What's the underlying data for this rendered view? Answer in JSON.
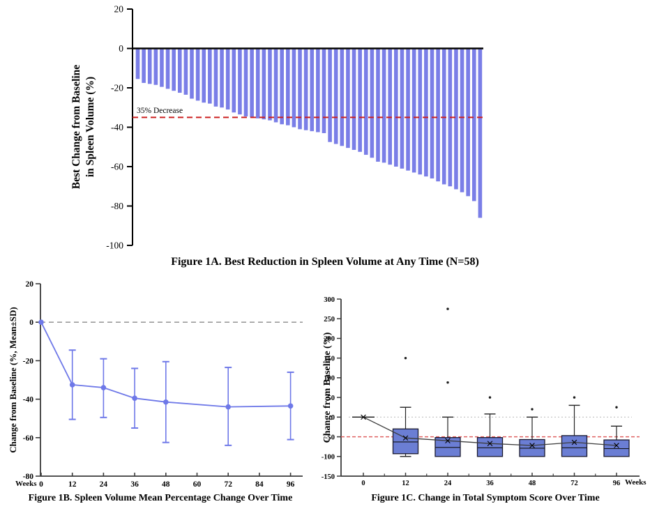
{
  "page": {
    "background": "#ffffff"
  },
  "chart_data": [
    {
      "id": "fig1a",
      "type": "bar",
      "title": "Figure 1A. Best Reduction in Spleen Volume at Any Time (N=58)",
      "ylabel_lines": [
        "Best Change from Baseline",
        "in Spleen Volume (%)"
      ],
      "ylim": [
        20,
        -100
      ],
      "yticks": [
        20,
        0,
        -20,
        -40,
        -60,
        -80,
        -100
      ],
      "n_patients": 58,
      "values": [
        -15.5,
        -17.5,
        -18,
        -18.5,
        -19.5,
        -20.5,
        -21.5,
        -22.5,
        -23.5,
        -25.5,
        -26.5,
        -27.5,
        -28,
        -29.5,
        -30,
        -31,
        -32.5,
        -33.5,
        -34.5,
        -35,
        -35.5,
        -36,
        -36.5,
        -37.5,
        -38.5,
        -39,
        -40,
        -41,
        -41.5,
        -42,
        -42.5,
        -43,
        -47.5,
        -48.5,
        -49.5,
        -50.5,
        -51.5,
        -52.5,
        -54,
        -55.5,
        -57.5,
        -58,
        -59,
        -60,
        -61,
        -62,
        -63,
        -64,
        -65,
        -66,
        -67.5,
        -69,
        -70,
        -71.5,
        -73,
        -75,
        -77.5,
        -86
      ],
      "reference_line": {
        "value": -35,
        "label": "35% Decrease",
        "color": "#cc1f1f"
      },
      "bar_color": "#7a7ee7",
      "grid": false
    },
    {
      "id": "fig1b",
      "type": "line",
      "title": "Figure 1B. Spleen Volume Mean Percentage Change Over Time",
      "ylabel": "Change from Baseline (%, Mean±SD)",
      "xlabel": "Weeks",
      "ylim": [
        20,
        -80
      ],
      "yticks": [
        20,
        0,
        -20,
        -40,
        -60,
        -80
      ],
      "xticks": [
        0,
        12,
        24,
        36,
        48,
        60,
        72,
        84,
        96
      ],
      "x": [
        0,
        12,
        24,
        36,
        48,
        72,
        96
      ],
      "mean": [
        0,
        -32.5,
        -34,
        -39.5,
        -41.5,
        -44,
        -43.5
      ],
      "upper": [
        null,
        -14.5,
        -19,
        -24,
        -20.5,
        -23.5,
        -26
      ],
      "lower": [
        null,
        -50.5,
        -49.5,
        -55,
        -62.5,
        -64,
        -61
      ],
      "line_color": "#6e78e8",
      "zero_line_color": "#8a8a8a",
      "grid": false,
      "legend": "none"
    },
    {
      "id": "fig1c",
      "type": "box",
      "title": "Figure 1C. Change in Total Symptom Score Over Time",
      "ylabel": "Change from Baseline (%)",
      "xlabel": "Weeks",
      "ylim": [
        300,
        -150
      ],
      "yticks": [
        300,
        250,
        200,
        150,
        100,
        50,
        0,
        -50,
        -100,
        -150
      ],
      "categories": [
        0,
        12,
        24,
        36,
        48,
        72,
        96
      ],
      "boxes": [
        {
          "week": 0,
          "mean": 0
        },
        {
          "week": 12,
          "q1": -93,
          "median": -63,
          "q3": -30,
          "whisker_low": -100,
          "whisker_high": 25,
          "mean": -53,
          "outliers": [
            150
          ]
        },
        {
          "week": 24,
          "q1": -100,
          "median": -77,
          "q3": -52,
          "whisker_low": null,
          "whisker_high": 0,
          "mean": -60,
          "outliers": [
            275,
            88
          ]
        },
        {
          "week": 36,
          "q1": -100,
          "median": -78,
          "q3": -52,
          "whisker_low": null,
          "whisker_high": 8,
          "mean": -67,
          "outliers": [
            50
          ]
        },
        {
          "week": 48,
          "q1": -100,
          "median": -79,
          "q3": -57,
          "whisker_low": null,
          "whisker_high": 0,
          "mean": -72,
          "outliers": [
            20
          ]
        },
        {
          "week": 72,
          "q1": -100,
          "median": -78,
          "q3": -47,
          "whisker_low": null,
          "whisker_high": 30,
          "mean": -64,
          "outliers": [
            50
          ]
        },
        {
          "week": 96,
          "q1": -100,
          "median": -80,
          "q3": -58,
          "whisker_low": null,
          "whisker_high": -23,
          "mean": -72,
          "outliers": [
            25
          ]
        }
      ],
      "box_color": "#6b7ed4",
      "box_border_color": "#1a1a2e",
      "mean_line_color": "#3c3c3c",
      "reference_line": {
        "value": -50,
        "color": "#dd5555"
      },
      "zero_line_color": "#c0c0c0",
      "grid": false
    }
  ]
}
